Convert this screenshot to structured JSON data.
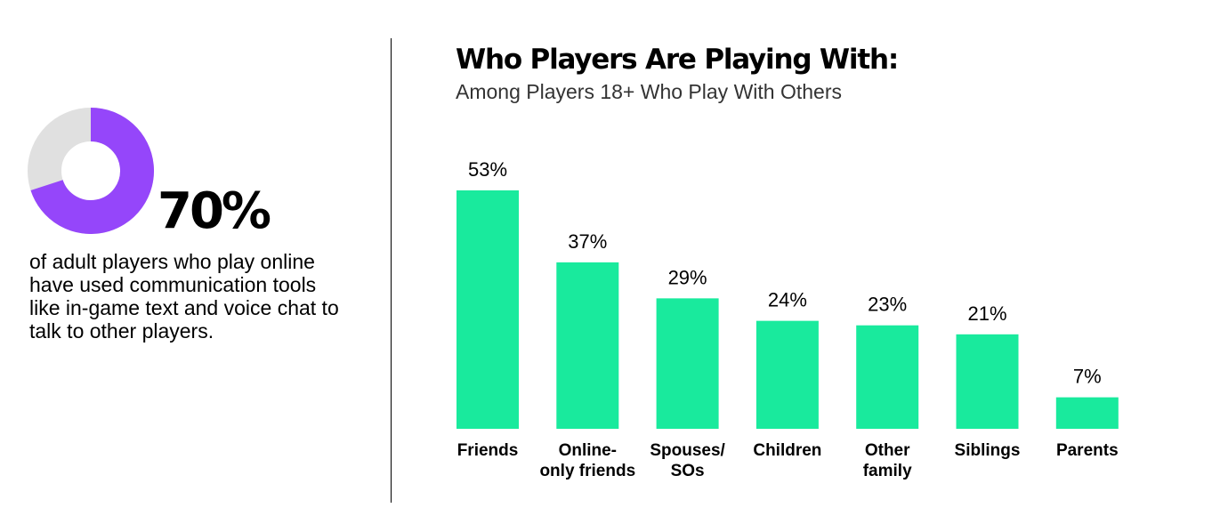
{
  "stat": {
    "value": "70%",
    "description": "of adult players who play online have used communication tools like in-game text and voice chat to talk to other players.",
    "donut_fraction": 0.7,
    "colors": {
      "filled": "#9546FA",
      "remainder": "#E0E0E0"
    }
  },
  "chart_data": {
    "type": "bar",
    "title": "Who Players Are Playing With:",
    "subtitle": "Among Players 18+ Who Play With Others",
    "categories": [
      [
        "Friends"
      ],
      [
        "Online-",
        "only friends"
      ],
      [
        "Spouses/",
        "SOs"
      ],
      [
        "Children"
      ],
      [
        "Other",
        "family"
      ],
      [
        "Siblings"
      ],
      [
        "Parents"
      ]
    ],
    "values": [
      53,
      37,
      29,
      24,
      23,
      21,
      7
    ],
    "data_labels": [
      "53%",
      "37%",
      "29%",
      "24%",
      "23%",
      "21%",
      "7%"
    ],
    "ylim": [
      0,
      53
    ],
    "grid": false,
    "bar_color": "#19EA9D"
  }
}
